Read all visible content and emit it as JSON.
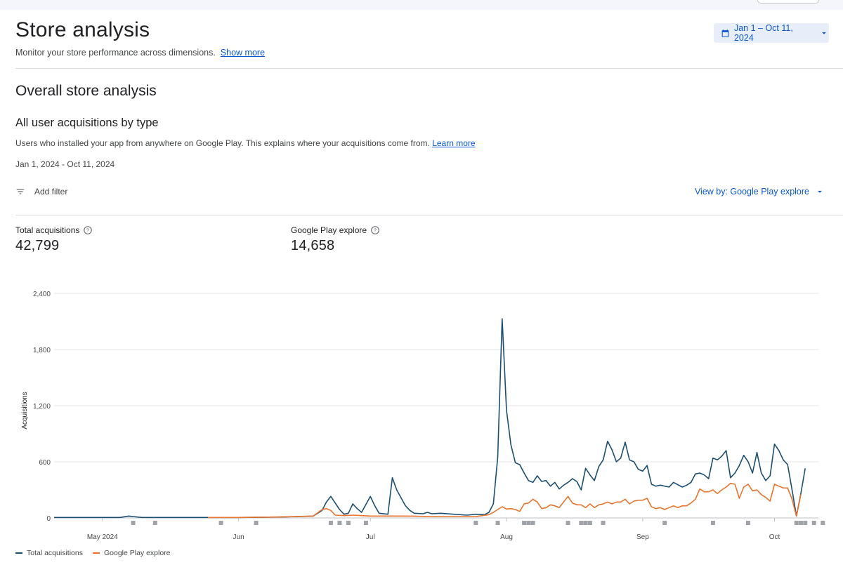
{
  "header": {
    "title": "Store analysis",
    "subtitle": "Monitor your store performance across dimensions.",
    "show_more": "Show more",
    "date_button": "Jan 1 – Oct 11, 2024"
  },
  "section": {
    "title": "Overall store analysis",
    "card_title": "All user acquisitions by type",
    "description": "Users who installed your app from anywhere on Google Play. This explains where your acquisitions come from.",
    "learn_more": "Learn more",
    "date_range": "Jan 1, 2024 - Oct 11, 2024",
    "add_filter": "Add filter",
    "view_by": "View by: Google Play explore"
  },
  "metrics": [
    {
      "label": "Total acquisitions",
      "value": "42,799"
    },
    {
      "label": "Google Play explore",
      "value": "14,658"
    }
  ],
  "colors": {
    "total": "#1b4f72",
    "explore": "#e8732c",
    "accent": "#0b57d0"
  },
  "chart_data": {
    "type": "line",
    "ylabel": "Acquisitions",
    "ylim": [
      0,
      2400
    ],
    "yticks": [
      0,
      600,
      1200,
      1800,
      2400
    ],
    "xlim": [
      "2024-04-20",
      "2024-10-11"
    ],
    "xticks": [
      {
        "date": "2024-05-01",
        "label": "May 2024"
      },
      {
        "date": "2024-06-01",
        "label": "Jun"
      },
      {
        "date": "2024-07-01",
        "label": "Jul"
      },
      {
        "date": "2024-08-01",
        "label": "Aug"
      },
      {
        "date": "2024-09-01",
        "label": "Sep"
      },
      {
        "date": "2024-10-01",
        "label": "Oct"
      }
    ],
    "series": [
      {
        "name": "Total acquisitions",
        "points": [
          [
            "2024-04-20",
            5
          ],
          [
            "2024-04-25",
            5
          ],
          [
            "2024-05-01",
            5
          ],
          [
            "2024-05-05",
            5
          ],
          [
            "2024-05-07",
            20
          ],
          [
            "2024-05-08",
            15
          ],
          [
            "2024-05-10",
            5
          ],
          [
            "2024-05-20",
            5
          ],
          [
            "2024-06-01",
            5
          ],
          [
            "2024-06-10",
            10
          ],
          [
            "2024-06-15",
            15
          ],
          [
            "2024-06-18",
            20
          ],
          [
            "2024-06-20",
            80
          ],
          [
            "2024-06-21",
            170
          ],
          [
            "2024-06-22",
            230
          ],
          [
            "2024-06-24",
            90
          ],
          [
            "2024-06-25",
            40
          ],
          [
            "2024-06-26",
            50
          ],
          [
            "2024-06-27",
            150
          ],
          [
            "2024-06-28",
            100
          ],
          [
            "2024-06-29",
            60
          ],
          [
            "2024-07-01",
            230
          ],
          [
            "2024-07-02",
            130
          ],
          [
            "2024-07-03",
            50
          ],
          [
            "2024-07-05",
            40
          ],
          [
            "2024-07-06",
            430
          ],
          [
            "2024-07-07",
            300
          ],
          [
            "2024-07-09",
            130
          ],
          [
            "2024-07-10",
            80
          ],
          [
            "2024-07-11",
            50
          ],
          [
            "2024-07-13",
            45
          ],
          [
            "2024-07-14",
            60
          ],
          [
            "2024-07-15",
            45
          ],
          [
            "2024-07-17",
            50
          ],
          [
            "2024-07-20",
            40
          ],
          [
            "2024-07-23",
            30
          ],
          [
            "2024-07-25",
            40
          ],
          [
            "2024-07-27",
            35
          ],
          [
            "2024-07-28",
            60
          ],
          [
            "2024-07-29",
            150
          ],
          [
            "2024-07-30",
            650
          ],
          [
            "2024-07-31",
            2130
          ],
          [
            "2024-08-01",
            1150
          ],
          [
            "2024-08-02",
            780
          ],
          [
            "2024-08-03",
            590
          ],
          [
            "2024-08-04",
            570
          ],
          [
            "2024-08-05",
            480
          ],
          [
            "2024-08-06",
            400
          ],
          [
            "2024-08-07",
            380
          ],
          [
            "2024-08-08",
            450
          ],
          [
            "2024-08-09",
            390
          ],
          [
            "2024-08-10",
            400
          ],
          [
            "2024-08-11",
            340
          ],
          [
            "2024-08-12",
            380
          ],
          [
            "2024-08-13",
            310
          ],
          [
            "2024-08-14",
            350
          ],
          [
            "2024-08-15",
            380
          ],
          [
            "2024-08-16",
            420
          ],
          [
            "2024-08-17",
            390
          ],
          [
            "2024-08-18",
            300
          ],
          [
            "2024-08-19",
            530
          ],
          [
            "2024-08-20",
            460
          ],
          [
            "2024-08-21",
            400
          ],
          [
            "2024-08-22",
            550
          ],
          [
            "2024-08-23",
            620
          ],
          [
            "2024-08-24",
            820
          ],
          [
            "2024-08-25",
            730
          ],
          [
            "2024-08-26",
            600
          ],
          [
            "2024-08-27",
            640
          ],
          [
            "2024-08-28",
            810
          ],
          [
            "2024-08-29",
            620
          ],
          [
            "2024-08-30",
            600
          ],
          [
            "2024-08-31",
            520
          ],
          [
            "2024-09-01",
            500
          ],
          [
            "2024-09-02",
            560
          ],
          [
            "2024-09-03",
            360
          ],
          [
            "2024-09-04",
            340
          ],
          [
            "2024-09-05",
            350
          ],
          [
            "2024-09-07",
            330
          ],
          [
            "2024-09-08",
            380
          ],
          [
            "2024-09-10",
            330
          ],
          [
            "2024-09-11",
            350
          ],
          [
            "2024-09-12",
            380
          ],
          [
            "2024-09-13",
            470
          ],
          [
            "2024-09-14",
            480
          ],
          [
            "2024-09-15",
            460
          ],
          [
            "2024-09-16",
            420
          ],
          [
            "2024-09-17",
            640
          ],
          [
            "2024-09-18",
            620
          ],
          [
            "2024-09-19",
            660
          ],
          [
            "2024-09-20",
            720
          ],
          [
            "2024-09-21",
            430
          ],
          [
            "2024-09-22",
            480
          ],
          [
            "2024-09-23",
            560
          ],
          [
            "2024-09-24",
            670
          ],
          [
            "2024-09-25",
            600
          ],
          [
            "2024-09-26",
            480
          ],
          [
            "2024-09-27",
            700
          ],
          [
            "2024-09-28",
            480
          ],
          [
            "2024-09-29",
            400
          ],
          [
            "2024-09-30",
            450
          ],
          [
            "2024-10-01",
            790
          ],
          [
            "2024-10-02",
            720
          ],
          [
            "2024-10-03",
            620
          ],
          [
            "2024-10-04",
            570
          ],
          [
            "2024-10-05",
            300
          ],
          [
            "2024-10-06",
            20
          ],
          [
            "2024-10-07",
            260
          ],
          [
            "2024-10-08",
            530
          ]
        ]
      },
      {
        "name": "Google Play explore",
        "points": [
          [
            "2024-05-25",
            5
          ],
          [
            "2024-06-01",
            5
          ],
          [
            "2024-06-10",
            10
          ],
          [
            "2024-06-18",
            20
          ],
          [
            "2024-06-20",
            90
          ],
          [
            "2024-06-21",
            100
          ],
          [
            "2024-06-22",
            80
          ],
          [
            "2024-06-23",
            30
          ],
          [
            "2024-06-25",
            25
          ],
          [
            "2024-06-27",
            30
          ],
          [
            "2024-07-01",
            20
          ],
          [
            "2024-07-05",
            20
          ],
          [
            "2024-07-10",
            20
          ],
          [
            "2024-07-15",
            15
          ],
          [
            "2024-07-20",
            15
          ],
          [
            "2024-07-25",
            15
          ],
          [
            "2024-07-28",
            35
          ],
          [
            "2024-07-29",
            60
          ],
          [
            "2024-07-30",
            90
          ],
          [
            "2024-07-31",
            120
          ],
          [
            "2024-08-01",
            95
          ],
          [
            "2024-08-02",
            100
          ],
          [
            "2024-08-03",
            90
          ],
          [
            "2024-08-04",
            70
          ],
          [
            "2024-08-05",
            150
          ],
          [
            "2024-08-06",
            160
          ],
          [
            "2024-08-07",
            200
          ],
          [
            "2024-08-08",
            170
          ],
          [
            "2024-08-09",
            100
          ],
          [
            "2024-08-10",
            110
          ],
          [
            "2024-08-11",
            140
          ],
          [
            "2024-08-12",
            130
          ],
          [
            "2024-08-13",
            110
          ],
          [
            "2024-08-14",
            170
          ],
          [
            "2024-08-15",
            230
          ],
          [
            "2024-08-16",
            160
          ],
          [
            "2024-08-17",
            140
          ],
          [
            "2024-08-18",
            140
          ],
          [
            "2024-08-19",
            110
          ],
          [
            "2024-08-20",
            150
          ],
          [
            "2024-08-21",
            110
          ],
          [
            "2024-08-22",
            140
          ],
          [
            "2024-08-23",
            150
          ],
          [
            "2024-08-24",
            170
          ],
          [
            "2024-08-25",
            150
          ],
          [
            "2024-08-26",
            170
          ],
          [
            "2024-08-27",
            170
          ],
          [
            "2024-08-28",
            200
          ],
          [
            "2024-08-29",
            150
          ],
          [
            "2024-08-30",
            180
          ],
          [
            "2024-08-31",
            190
          ],
          [
            "2024-09-01",
            190
          ],
          [
            "2024-09-02",
            210
          ],
          [
            "2024-09-03",
            120
          ],
          [
            "2024-09-04",
            100
          ],
          [
            "2024-09-05",
            110
          ],
          [
            "2024-09-06",
            90
          ],
          [
            "2024-09-07",
            110
          ],
          [
            "2024-09-08",
            130
          ],
          [
            "2024-09-09",
            110
          ],
          [
            "2024-09-10",
            130
          ],
          [
            "2024-09-11",
            130
          ],
          [
            "2024-09-12",
            160
          ],
          [
            "2024-09-13",
            200
          ],
          [
            "2024-09-14",
            310
          ],
          [
            "2024-09-15",
            280
          ],
          [
            "2024-09-16",
            280
          ],
          [
            "2024-09-17",
            300
          ],
          [
            "2024-09-18",
            260
          ],
          [
            "2024-09-19",
            300
          ],
          [
            "2024-09-20",
            330
          ],
          [
            "2024-09-21",
            370
          ],
          [
            "2024-09-22",
            360
          ],
          [
            "2024-09-23",
            210
          ],
          [
            "2024-09-24",
            330
          ],
          [
            "2024-09-25",
            360
          ],
          [
            "2024-09-26",
            290
          ],
          [
            "2024-09-27",
            300
          ],
          [
            "2024-09-28",
            250
          ],
          [
            "2024-09-29",
            220
          ],
          [
            "2024-09-30",
            180
          ],
          [
            "2024-10-01",
            360
          ],
          [
            "2024-10-02",
            340
          ],
          [
            "2024-10-03",
            320
          ],
          [
            "2024-10-04",
            320
          ],
          [
            "2024-10-05",
            200
          ],
          [
            "2024-10-06",
            20
          ],
          [
            "2024-10-07",
            250
          ]
        ]
      }
    ],
    "markers": [
      "2024-05-08",
      "2024-05-13",
      "2024-05-28",
      "2024-06-05",
      "2024-06-22",
      "2024-06-24",
      "2024-06-26",
      "2024-06-30",
      "2024-07-25",
      "2024-07-30",
      "2024-08-05",
      "2024-08-06",
      "2024-08-07",
      "2024-08-15",
      "2024-08-18",
      "2024-08-19",
      "2024-08-20",
      "2024-08-23",
      "2024-09-06",
      "2024-09-17",
      "2024-09-25",
      "2024-10-06",
      "2024-10-07",
      "2024-10-08",
      "2024-10-10",
      "2024-10-12"
    ],
    "legend": [
      "Total acquisitions",
      "Google Play explore"
    ],
    "legend_position": "bottom-left",
    "grid": true
  }
}
